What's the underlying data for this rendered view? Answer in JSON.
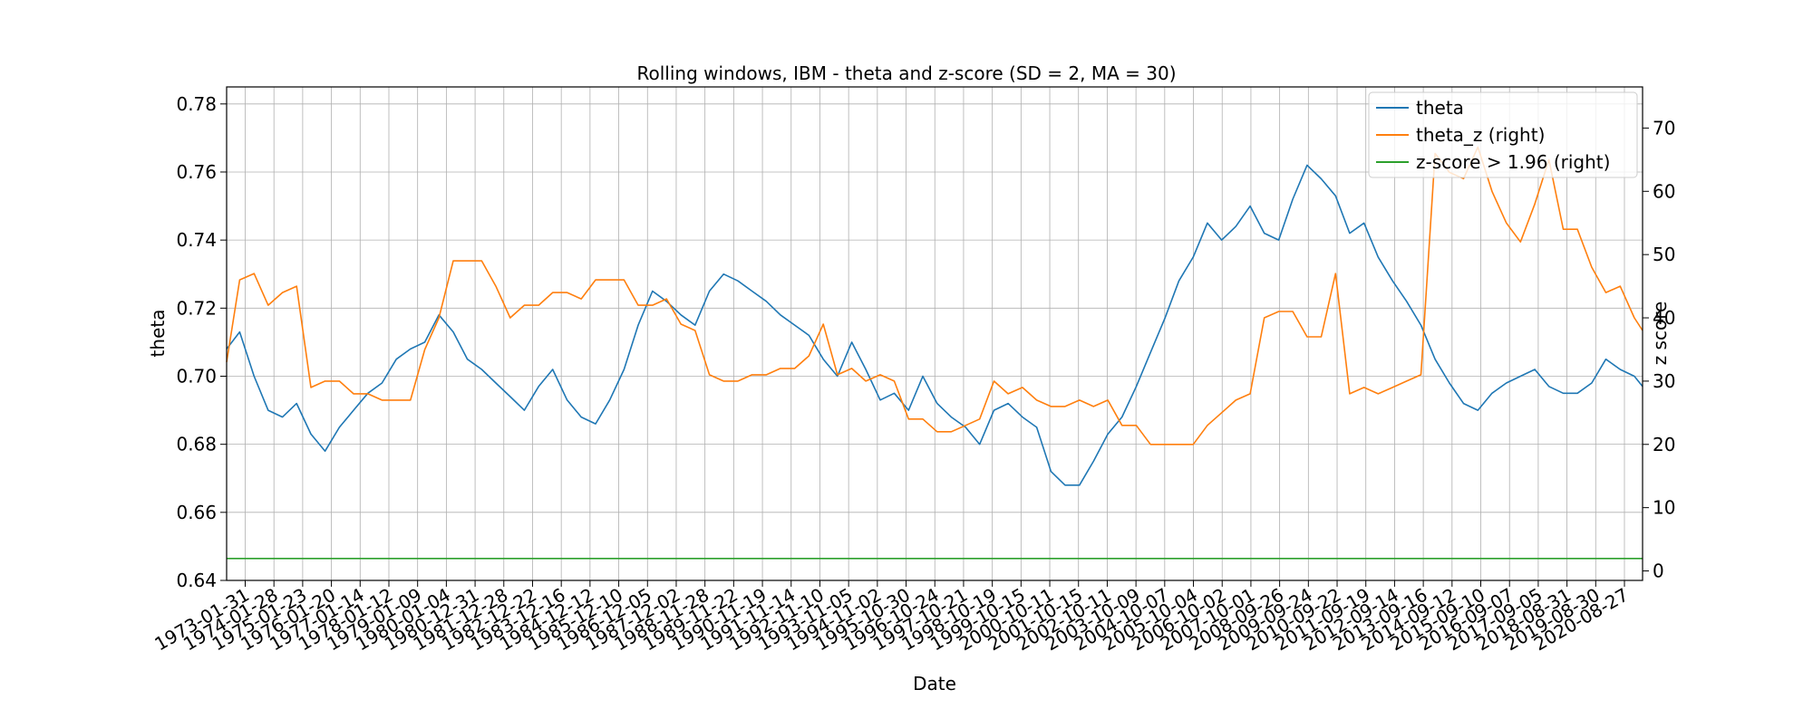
{
  "chart_data": {
    "type": "line",
    "title": "Rolling windows, IBM - theta and z-score (SD = 2, MA = 30)",
    "xlabel": "Date",
    "ylabel": "theta",
    "ylabel_right": "z score",
    "ylim": [
      0.64,
      0.785
    ],
    "ylim_right": [
      -1.5,
      76.5
    ],
    "yticks": [
      0.64,
      0.66,
      0.68,
      0.7,
      0.72,
      0.74,
      0.76,
      0.78
    ],
    "yticks_right": [
      0,
      10,
      20,
      30,
      40,
      50,
      60,
      70
    ],
    "xlim": [
      "1972-01-15",
      "2021-10-15"
    ],
    "xtick_labels": [
      "1973-01-31",
      "1974-01-28",
      "1975-01-23",
      "1976-01-20",
      "1977-01-14",
      "1978-01-12",
      "1979-01-09",
      "1980-01-04",
      "1980-12-31",
      "1981-12-28",
      "1982-12-22",
      "1983-12-16",
      "1984-12-12",
      "1985-12-10",
      "1986-12-05",
      "1987-12-02",
      "1988-11-28",
      "1989-11-22",
      "1990-11-19",
      "1991-11-14",
      "1992-11-10",
      "1993-11-05",
      "1994-11-02",
      "1995-10-30",
      "1996-10-24",
      "1997-10-21",
      "1998-10-19",
      "1999-10-15",
      "2000-10-11",
      "2001-10-15",
      "2002-10-11",
      "2003-10-09",
      "2004-10-07",
      "2005-10-04",
      "2006-10-02",
      "2007-10-01",
      "2008-09-26",
      "2009-09-24",
      "2010-09-22",
      "2011-09-19",
      "2012-09-14",
      "2013-09-16",
      "2014-09-12",
      "2015-09-10",
      "2016-09-07",
      "2017-09-05",
      "2018-08-31",
      "2019-08-30",
      "2020-08-27"
    ],
    "grid": true,
    "legend_position": "upper-right",
    "series": [
      {
        "name": "theta",
        "axis": "left",
        "color": "#1f77b4",
        "x": [
          "1972-01-15",
          "1972-07-01",
          "1973-01-01",
          "1973-07-01",
          "1974-01-01",
          "1974-07-01",
          "1975-01-01",
          "1975-07-01",
          "1976-01-01",
          "1976-07-01",
          "1977-01-01",
          "1977-07-01",
          "1978-01-01",
          "1978-07-01",
          "1979-01-01",
          "1979-07-01",
          "1980-01-01",
          "1980-07-01",
          "1981-01-01",
          "1981-07-01",
          "1982-01-01",
          "1982-07-01",
          "1983-01-01",
          "1983-07-01",
          "1984-01-01",
          "1984-07-01",
          "1985-01-01",
          "1985-07-01",
          "1986-01-01",
          "1986-07-01",
          "1987-01-01",
          "1987-07-01",
          "1988-01-01",
          "1988-07-01",
          "1989-01-01",
          "1989-07-01",
          "1990-01-01",
          "1990-07-01",
          "1991-01-01",
          "1991-07-01",
          "1992-01-01",
          "1992-07-01",
          "1993-01-01",
          "1993-07-01",
          "1994-01-01",
          "1994-07-01",
          "1995-01-01",
          "1995-07-01",
          "1996-01-01",
          "1996-07-01",
          "1997-01-01",
          "1997-07-01",
          "1998-01-01",
          "1998-07-01",
          "1999-01-01",
          "1999-07-01",
          "2000-01-01",
          "2000-07-01",
          "2001-01-01",
          "2001-07-01",
          "2002-01-01",
          "2002-07-01",
          "2003-01-01",
          "2003-07-01",
          "2004-01-01",
          "2004-07-01",
          "2005-01-01",
          "2005-07-01",
          "2006-01-01",
          "2006-07-01",
          "2007-01-01",
          "2007-07-01",
          "2008-01-01",
          "2008-07-01",
          "2009-01-01",
          "2009-07-01",
          "2010-01-01",
          "2010-07-01",
          "2011-01-01",
          "2011-07-01",
          "2012-01-01",
          "2012-07-01",
          "2013-01-01",
          "2013-07-01",
          "2014-01-01",
          "2014-07-01",
          "2015-01-01",
          "2015-07-01",
          "2016-01-01",
          "2016-07-01",
          "2017-01-01",
          "2017-07-01",
          "2018-01-01",
          "2018-07-01",
          "2019-01-01",
          "2019-07-01",
          "2020-01-01",
          "2020-07-01",
          "2021-01-01",
          "2021-07-01",
          "2021-10-15"
        ],
        "y": [
          0.708,
          0.713,
          0.7,
          0.69,
          0.688,
          0.692,
          0.683,
          0.678,
          0.685,
          0.69,
          0.695,
          0.698,
          0.705,
          0.708,
          0.71,
          0.718,
          0.713,
          0.705,
          0.702,
          0.698,
          0.694,
          0.69,
          0.697,
          0.702,
          0.693,
          0.688,
          0.686,
          0.693,
          0.702,
          0.715,
          0.725,
          0.722,
          0.718,
          0.715,
          0.725,
          0.73,
          0.728,
          0.725,
          0.722,
          0.718,
          0.715,
          0.712,
          0.705,
          0.7,
          0.71,
          0.702,
          0.693,
          0.695,
          0.69,
          0.7,
          0.692,
          0.688,
          0.685,
          0.68,
          0.69,
          0.692,
          0.688,
          0.685,
          0.672,
          0.668,
          0.668,
          0.675,
          0.683,
          0.688,
          0.697,
          0.707,
          0.717,
          0.728,
          0.735,
          0.745,
          0.74,
          0.744,
          0.75,
          0.742,
          0.74,
          0.752,
          0.762,
          0.758,
          0.753,
          0.742,
          0.745,
          0.735,
          0.728,
          0.722,
          0.715,
          0.705,
          0.698,
          0.692,
          0.69,
          0.695,
          0.698,
          0.7,
          0.702,
          0.697,
          0.695,
          0.695,
          0.698,
          0.705,
          0.702,
          0.7,
          0.697
        ]
      },
      {
        "name": "theta_z (right)",
        "axis": "right",
        "color": "#ff7f0e",
        "x": [
          "1972-01-15",
          "1972-07-01",
          "1973-01-01",
          "1973-07-01",
          "1974-01-01",
          "1974-07-01",
          "1975-01-01",
          "1975-07-01",
          "1976-01-01",
          "1976-07-01",
          "1977-01-01",
          "1977-07-01",
          "1978-01-01",
          "1978-07-01",
          "1979-01-01",
          "1979-07-01",
          "1980-01-01",
          "1980-07-01",
          "1981-01-01",
          "1981-07-01",
          "1982-01-01",
          "1982-07-01",
          "1983-01-01",
          "1983-07-01",
          "1984-01-01",
          "1984-07-01",
          "1985-01-01",
          "1985-07-01",
          "1986-01-01",
          "1986-07-01",
          "1987-01-01",
          "1987-07-01",
          "1988-01-01",
          "1988-07-01",
          "1989-01-01",
          "1989-07-01",
          "1990-01-01",
          "1990-07-01",
          "1991-01-01",
          "1991-07-01",
          "1992-01-01",
          "1992-07-01",
          "1993-01-01",
          "1993-07-01",
          "1994-01-01",
          "1994-07-01",
          "1995-01-01",
          "1995-07-01",
          "1996-01-01",
          "1996-07-01",
          "1997-01-01",
          "1997-07-01",
          "1998-01-01",
          "1998-07-01",
          "1999-01-01",
          "1999-07-01",
          "2000-01-01",
          "2000-07-01",
          "2001-01-01",
          "2001-07-01",
          "2002-01-01",
          "2002-07-01",
          "2003-01-01",
          "2003-07-01",
          "2004-01-01",
          "2004-07-01",
          "2005-01-01",
          "2005-07-01",
          "2006-01-01",
          "2006-07-01",
          "2007-01-01",
          "2007-07-01",
          "2008-01-01",
          "2008-07-01",
          "2009-01-01",
          "2009-07-01",
          "2010-01-01",
          "2010-07-01",
          "2011-01-01",
          "2011-07-01",
          "2012-01-01",
          "2012-07-01",
          "2013-01-01",
          "2013-07-01",
          "2014-01-01",
          "2014-07-01",
          "2015-01-01",
          "2015-07-01",
          "2016-01-01",
          "2016-07-01",
          "2017-01-01",
          "2017-07-01",
          "2018-01-01",
          "2018-07-01",
          "2019-01-01",
          "2019-07-01",
          "2020-01-01",
          "2020-07-01",
          "2021-01-01",
          "2021-07-01",
          "2021-10-15"
        ],
        "y": [
          33,
          46,
          47,
          42,
          44,
          45,
          29,
          30,
          30,
          28,
          28,
          27,
          27,
          27,
          35,
          40,
          49,
          49,
          49,
          45,
          40,
          42,
          42,
          44,
          44,
          43,
          46,
          46,
          46,
          42,
          42,
          43,
          39,
          38,
          31,
          30,
          30,
          31,
          31,
          32,
          32,
          34,
          39,
          31,
          32,
          30,
          31,
          30,
          24,
          24,
          22,
          22,
          23,
          24,
          30,
          28,
          29,
          27,
          26,
          26,
          27,
          26,
          27,
          23,
          23,
          20,
          20,
          20,
          20,
          23,
          25,
          27,
          28,
          40,
          41,
          41,
          37,
          37,
          47,
          28,
          29,
          28,
          29,
          30,
          31,
          66,
          63,
          62,
          67,
          60,
          55,
          52,
          58,
          65,
          54,
          54,
          48,
          44,
          45,
          40,
          38
        ]
      },
      {
        "name": "z-score > 1.96 (right)",
        "axis": "right",
        "color": "#2ca02c",
        "x": [
          "1972-01-15",
          "2021-10-15"
        ],
        "y": [
          1.96,
          1.96
        ]
      }
    ]
  }
}
